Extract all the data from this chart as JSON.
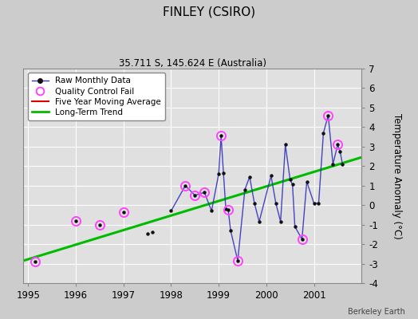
{
  "title": "FINLEY (CSIRO)",
  "subtitle": "35.711 S, 145.624 E (Australia)",
  "ylabel": "Temperature Anomaly (°C)",
  "credit": "Berkeley Earth",
  "xlim": [
    1994.9,
    2002.0
  ],
  "ylim": [
    -4,
    7
  ],
  "yticks": [
    -4,
    -3,
    -2,
    -1,
    0,
    1,
    2,
    3,
    4,
    5,
    6,
    7
  ],
  "xticks": [
    1995,
    1996,
    1997,
    1998,
    1999,
    2000,
    2001
  ],
  "bg_color": "#e0e0e0",
  "fig_color": "#cccccc",
  "raw_data": [
    [
      1995.15,
      -2.9
    ],
    [
      1996.0,
      -0.8
    ],
    [
      1996.5,
      -1.0
    ],
    [
      1997.0,
      -0.35
    ],
    [
      1997.5,
      -1.45
    ],
    [
      1997.6,
      -1.4
    ],
    [
      1998.0,
      -0.3
    ],
    [
      1998.3,
      1.0
    ],
    [
      1998.5,
      0.5
    ],
    [
      1998.7,
      0.65
    ],
    [
      1998.85,
      -0.3
    ],
    [
      1999.0,
      1.6
    ],
    [
      1999.05,
      3.55
    ],
    [
      1999.1,
      1.65
    ],
    [
      1999.15,
      -0.2
    ],
    [
      1999.2,
      -0.25
    ],
    [
      1999.25,
      -1.3
    ],
    [
      1999.4,
      -2.85
    ],
    [
      1999.55,
      0.8
    ],
    [
      1999.65,
      1.45
    ],
    [
      1999.75,
      0.1
    ],
    [
      1999.85,
      -0.85
    ],
    [
      2000.1,
      1.5
    ],
    [
      2000.2,
      0.1
    ],
    [
      2000.3,
      -0.85
    ],
    [
      2000.4,
      3.1
    ],
    [
      2000.5,
      1.3
    ],
    [
      2000.55,
      1.05
    ],
    [
      2000.6,
      -1.1
    ],
    [
      2000.75,
      -1.75
    ],
    [
      2000.85,
      1.2
    ],
    [
      2001.0,
      0.1
    ],
    [
      2001.1,
      0.1
    ],
    [
      2001.2,
      3.7
    ],
    [
      2001.3,
      4.6
    ],
    [
      2001.4,
      2.1
    ],
    [
      2001.5,
      3.1
    ],
    [
      2001.55,
      2.75
    ],
    [
      2001.6,
      2.1
    ]
  ],
  "qc_fail": [
    [
      1995.15,
      -2.9
    ],
    [
      1996.0,
      -0.8
    ],
    [
      1996.5,
      -1.0
    ],
    [
      1997.0,
      -0.35
    ],
    [
      1998.3,
      1.0
    ],
    [
      1998.5,
      0.5
    ],
    [
      1998.7,
      0.65
    ],
    [
      1999.05,
      3.55
    ],
    [
      1999.2,
      -0.25
    ],
    [
      1999.4,
      -2.85
    ],
    [
      2000.75,
      -1.75
    ],
    [
      2001.3,
      4.6
    ],
    [
      2001.5,
      3.1
    ]
  ],
  "connected_x": [
    1998.0,
    1998.3,
    1998.5,
    1998.7,
    1998.85,
    1999.0,
    1999.05,
    1999.1,
    1999.15,
    1999.2,
    1999.25,
    1999.4,
    1999.55,
    1999.65,
    1999.75,
    1999.85,
    2000.1,
    2000.2,
    2000.3,
    2000.4,
    2000.5,
    2000.55,
    2000.6,
    2000.75,
    2000.85,
    2001.0,
    2001.1,
    2001.2,
    2001.3,
    2001.4,
    2001.5,
    2001.55,
    2001.6
  ],
  "connected_y": [
    -0.3,
    1.0,
    0.5,
    0.65,
    -0.3,
    1.6,
    3.55,
    1.65,
    -0.2,
    -0.25,
    -1.3,
    -2.85,
    0.8,
    1.45,
    0.1,
    -0.85,
    1.5,
    0.1,
    -0.85,
    3.1,
    1.3,
    1.05,
    -1.1,
    -1.75,
    1.2,
    0.1,
    0.1,
    3.7,
    4.6,
    2.1,
    3.1,
    2.75,
    2.1
  ],
  "trend_x": [
    1994.9,
    2002.0
  ],
  "trend_y": [
    -2.85,
    2.45
  ],
  "raw_color": "#3333bb",
  "dot_color": "#111111",
  "qc_color": "#ff44ff",
  "trend_color": "#00bb00",
  "mavg_color": "#dd0000"
}
